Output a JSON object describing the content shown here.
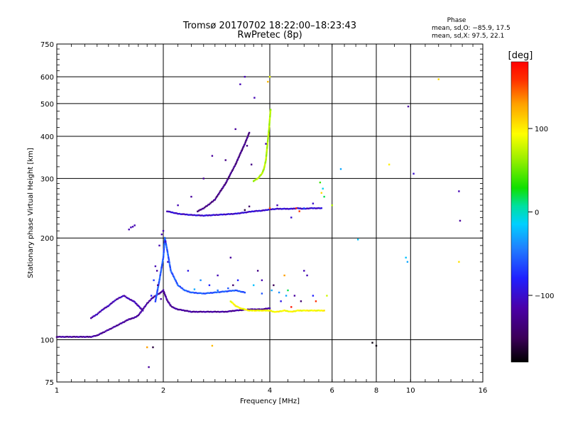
{
  "chart_data": {
    "type": "scatter",
    "title": "Tromsø 20170702 18:22:00–18:23:43",
    "subtitle": "RwPretec (8p)",
    "xlabel": "Frequency [MHz]",
    "ylabel": "Stationary phase Virtual Height [km]",
    "x_scale": "log2",
    "y_scale": "log",
    "xlim": [
      1,
      16
    ],
    "ylim": [
      75,
      750
    ],
    "x_ticks": [
      {
        "value": 1,
        "label": "1"
      },
      {
        "value": 2,
        "label": "2"
      },
      {
        "value": 4,
        "label": "4"
      },
      {
        "value": 6,
        "label": "6"
      },
      {
        "value": 8,
        "label": "8"
      },
      {
        "value": 10,
        "label": "10"
      },
      {
        "value": 16,
        "label": "16"
      }
    ],
    "y_ticks": [
      {
        "value": 75,
        "label": "75"
      },
      {
        "value": 100,
        "label": "100"
      },
      {
        "value": 200,
        "label": "200"
      },
      {
        "value": 300,
        "label": "300"
      },
      {
        "value": 400,
        "label": "400"
      },
      {
        "value": 500,
        "label": "500"
      },
      {
        "value": 600,
        "label": "600"
      },
      {
        "value": 750,
        "label": "750"
      }
    ],
    "grid": true,
    "phase_stats": {
      "heading": "Phase",
      "o_line": "mean, sd,O: −85.9, 17.5",
      "x_line": "mean, sd,X:  97.5, 22.1"
    },
    "colorbar": {
      "label": "[deg]",
      "range": [
        -180,
        180
      ],
      "ticks": [
        {
          "value": 100,
          "label": "100"
        },
        {
          "value": 0,
          "label": "0"
        },
        {
          "value": -100,
          "label": "−100"
        }
      ]
    },
    "series": [
      {
        "traces": [
          {
            "phase": -120,
            "points": [
              [
                1.0,
                102
              ],
              [
                1.05,
                102
              ],
              [
                1.1,
                102
              ],
              [
                1.15,
                102
              ],
              [
                1.2,
                102
              ],
              [
                1.25,
                102
              ],
              [
                1.3,
                103
              ],
              [
                1.35,
                105
              ],
              [
                1.4,
                107
              ],
              [
                1.45,
                109
              ],
              [
                1.5,
                111
              ],
              [
                1.55,
                113
              ],
              [
                1.6,
                115
              ],
              [
                1.65,
                116
              ],
              [
                1.7,
                118
              ],
              [
                1.75,
                123
              ],
              [
                1.8,
                128
              ],
              [
                1.85,
                132
              ],
              [
                1.9,
                135
              ],
              [
                1.95,
                137
              ],
              [
                2.0,
                140
              ],
              [
                2.05,
                131
              ],
              [
                2.1,
                126
              ],
              [
                2.15,
                124
              ],
              [
                2.2,
                123
              ],
              [
                2.3,
                122
              ],
              [
                2.4,
                121
              ],
              [
                2.5,
                121
              ],
              [
                2.6,
                121
              ],
              [
                2.8,
                121
              ],
              [
                3.0,
                121
              ],
              [
                3.2,
                122
              ],
              [
                3.5,
                123
              ],
              [
                3.8,
                123
              ],
              [
                4.0,
                124
              ]
            ]
          },
          {
            "phase": -110,
            "points": [
              [
                1.25,
                116
              ],
              [
                1.3,
                119
              ],
              [
                1.35,
                123
              ],
              [
                1.4,
                126
              ],
              [
                1.45,
                130
              ],
              [
                1.5,
                133
              ],
              [
                1.55,
                135
              ],
              [
                1.6,
                132
              ],
              [
                1.65,
                130
              ],
              [
                1.7,
                126
              ],
              [
                1.75,
                122
              ]
            ]
          },
          {
            "phase": -100,
            "points": [
              [
                2.05,
                240
              ],
              [
                2.2,
                236
              ],
              [
                2.4,
                234
              ],
              [
                2.6,
                233
              ],
              [
                2.8,
                234
              ],
              [
                3.0,
                235
              ],
              [
                3.2,
                236
              ],
              [
                3.4,
                238
              ],
              [
                3.6,
                240
              ],
              [
                3.8,
                241
              ],
              [
                4.0,
                243
              ],
              [
                4.2,
                244
              ],
              [
                4.4,
                244
              ],
              [
                4.6,
                244
              ],
              [
                4.8,
                245
              ],
              [
                5.0,
                244
              ],
              [
                5.2,
                245
              ],
              [
                5.4,
                245
              ],
              [
                5.6,
                245
              ]
            ]
          },
          {
            "phase": 70,
            "points": [
              [
                3.6,
                295
              ],
              [
                3.7,
                300
              ],
              [
                3.8,
                310
              ],
              [
                3.85,
                320
              ],
              [
                3.9,
                340
              ],
              [
                3.92,
                360
              ],
              [
                3.94,
                380
              ],
              [
                3.96,
                400
              ],
              [
                3.98,
                420
              ],
              [
                4.0,
                450
              ],
              [
                4.02,
                480
              ]
            ]
          },
          {
            "phase": 95,
            "points": [
              [
                3.1,
                130
              ],
              [
                3.2,
                126
              ],
              [
                3.3,
                124
              ],
              [
                3.4,
                123
              ],
              [
                3.5,
                122
              ],
              [
                3.6,
                122
              ],
              [
                3.7,
                122
              ],
              [
                3.8,
                122
              ],
              [
                3.9,
                122
              ],
              [
                4.0,
                122
              ],
              [
                4.1,
                121
              ],
              [
                4.2,
                121
              ],
              [
                4.4,
                122
              ],
              [
                4.6,
                121
              ],
              [
                4.8,
                122
              ],
              [
                5.0,
                122
              ],
              [
                5.2,
                122
              ],
              [
                5.4,
                122
              ],
              [
                5.6,
                122
              ],
              [
                5.7,
                122
              ]
            ]
          },
          {
            "phase": -130,
            "points": [
              [
                2.5,
                240
              ],
              [
                2.6,
                245
              ],
              [
                2.7,
                252
              ],
              [
                2.8,
                260
              ],
              [
                2.9,
                275
              ],
              [
                3.0,
                290
              ],
              [
                3.1,
                310
              ],
              [
                3.2,
                330
              ],
              [
                3.3,
                355
              ],
              [
                3.4,
                380
              ],
              [
                3.5,
                410
              ]
            ]
          },
          {
            "phase": -60,
            "points": [
              [
                1.9,
                130
              ],
              [
                1.95,
                150
              ],
              [
                2.0,
                175
              ],
              [
                2.02,
                200
              ],
              [
                2.05,
                185
              ],
              [
                2.1,
                160
              ],
              [
                2.2,
                145
              ],
              [
                2.3,
                140
              ],
              [
                2.4,
                138
              ],
              [
                2.6,
                137
              ],
              [
                2.8,
                138
              ],
              [
                3.0,
                139
              ],
              [
                3.2,
                140
              ],
              [
                3.4,
                138
              ]
            ]
          }
        ],
        "points": [
          [
            1.62,
            215,
            -110
          ],
          [
            1.64,
            216,
            -110
          ],
          [
            1.66,
            218,
            -110
          ],
          [
            1.6,
            212,
            -110
          ],
          [
            1.92,
            160,
            -120
          ],
          [
            1.95,
            190,
            -110
          ],
          [
            1.98,
            205,
            -110
          ],
          [
            2.0,
            210,
            -110
          ],
          [
            2.03,
            195,
            -100
          ],
          [
            2.06,
            170,
            -100
          ],
          [
            1.85,
            135,
            -80
          ],
          [
            1.88,
            150,
            -70
          ],
          [
            1.9,
            165,
            -110
          ],
          [
            1.93,
            145,
            -130
          ],
          [
            1.97,
            132,
            -120
          ],
          [
            2.2,
            250,
            -110
          ],
          [
            2.4,
            265,
            -120
          ],
          [
            2.6,
            300,
            -120
          ],
          [
            2.75,
            350,
            -120
          ],
          [
            3.0,
            340,
            -130
          ],
          [
            3.2,
            420,
            -120
          ],
          [
            3.3,
            570,
            -110
          ],
          [
            3.55,
            330,
            -130
          ],
          [
            3.45,
            375,
            -130
          ],
          [
            3.62,
            520,
            -110
          ],
          [
            3.9,
            380,
            -110
          ],
          [
            4.2,
            250,
            -110
          ],
          [
            4.6,
            230,
            -100
          ],
          [
            5.0,
            245,
            -60
          ],
          [
            5.3,
            253,
            -100
          ],
          [
            5.55,
            292,
            40
          ],
          [
            5.65,
            280,
            -10
          ],
          [
            5.7,
            265,
            20
          ],
          [
            6.0,
            250,
            70
          ],
          [
            6.35,
            320,
            -30
          ],
          [
            7.1,
            198,
            -20
          ],
          [
            7.8,
            98,
            -175
          ],
          [
            8.0,
            96,
            -175
          ],
          [
            8.7,
            330,
            100
          ],
          [
            9.7,
            175,
            -20
          ],
          [
            9.8,
            170,
            -30
          ],
          [
            9.85,
            490,
            -120
          ],
          [
            10.2,
            310,
            -100
          ],
          [
            12.0,
            590,
            110
          ],
          [
            13.7,
            275,
            -110
          ],
          [
            13.8,
            225,
            -120
          ],
          [
            13.7,
            170,
            105
          ],
          [
            3.4,
            600,
            -110
          ],
          [
            3.95,
            580,
            120
          ],
          [
            4.0,
            600,
            90
          ],
          [
            4.4,
            155,
            130
          ],
          [
            4.5,
            140,
            20
          ],
          [
            4.7,
            135,
            -120
          ],
          [
            4.9,
            130,
            -140
          ],
          [
            5.1,
            155,
            -110
          ],
          [
            5.3,
            135,
            -80
          ],
          [
            1.8,
            95,
            130
          ],
          [
            1.87,
            95,
            -160
          ],
          [
            1.82,
            83,
            -120
          ],
          [
            2.75,
            96,
            120
          ],
          [
            2.85,
            155,
            -110
          ],
          [
            3.1,
            175,
            -120
          ],
          [
            3.15,
            145,
            -140
          ],
          [
            3.7,
            160,
            -130
          ],
          [
            3.8,
            150,
            -110
          ],
          [
            4.1,
            145,
            -150
          ],
          [
            4.3,
            130,
            -90
          ],
          [
            4.6,
            125,
            170
          ],
          [
            5.0,
            160,
            -110
          ],
          [
            5.4,
            130,
            160
          ],
          [
            5.8,
            135,
            80
          ],
          [
            2.45,
            141,
            -30
          ],
          [
            2.55,
            150,
            -40
          ],
          [
            2.35,
            160,
            -90
          ],
          [
            2.7,
            145,
            -80
          ],
          [
            2.85,
            140,
            -50
          ],
          [
            3.05,
            142,
            -60
          ],
          [
            3.25,
            150,
            -80
          ],
          [
            3.6,
            145,
            -20
          ],
          [
            3.8,
            137,
            -60
          ],
          [
            4.05,
            140,
            -30
          ],
          [
            4.25,
            138,
            -40
          ],
          [
            4.45,
            135,
            -30
          ],
          [
            4.75,
            245,
            165
          ],
          [
            4.85,
            240,
            160
          ],
          [
            5.6,
            272,
            110
          ],
          [
            4.0,
            245,
            150
          ],
          [
            3.4,
            242,
            -160
          ],
          [
            3.5,
            248,
            -140
          ]
        ]
      }
    ]
  }
}
